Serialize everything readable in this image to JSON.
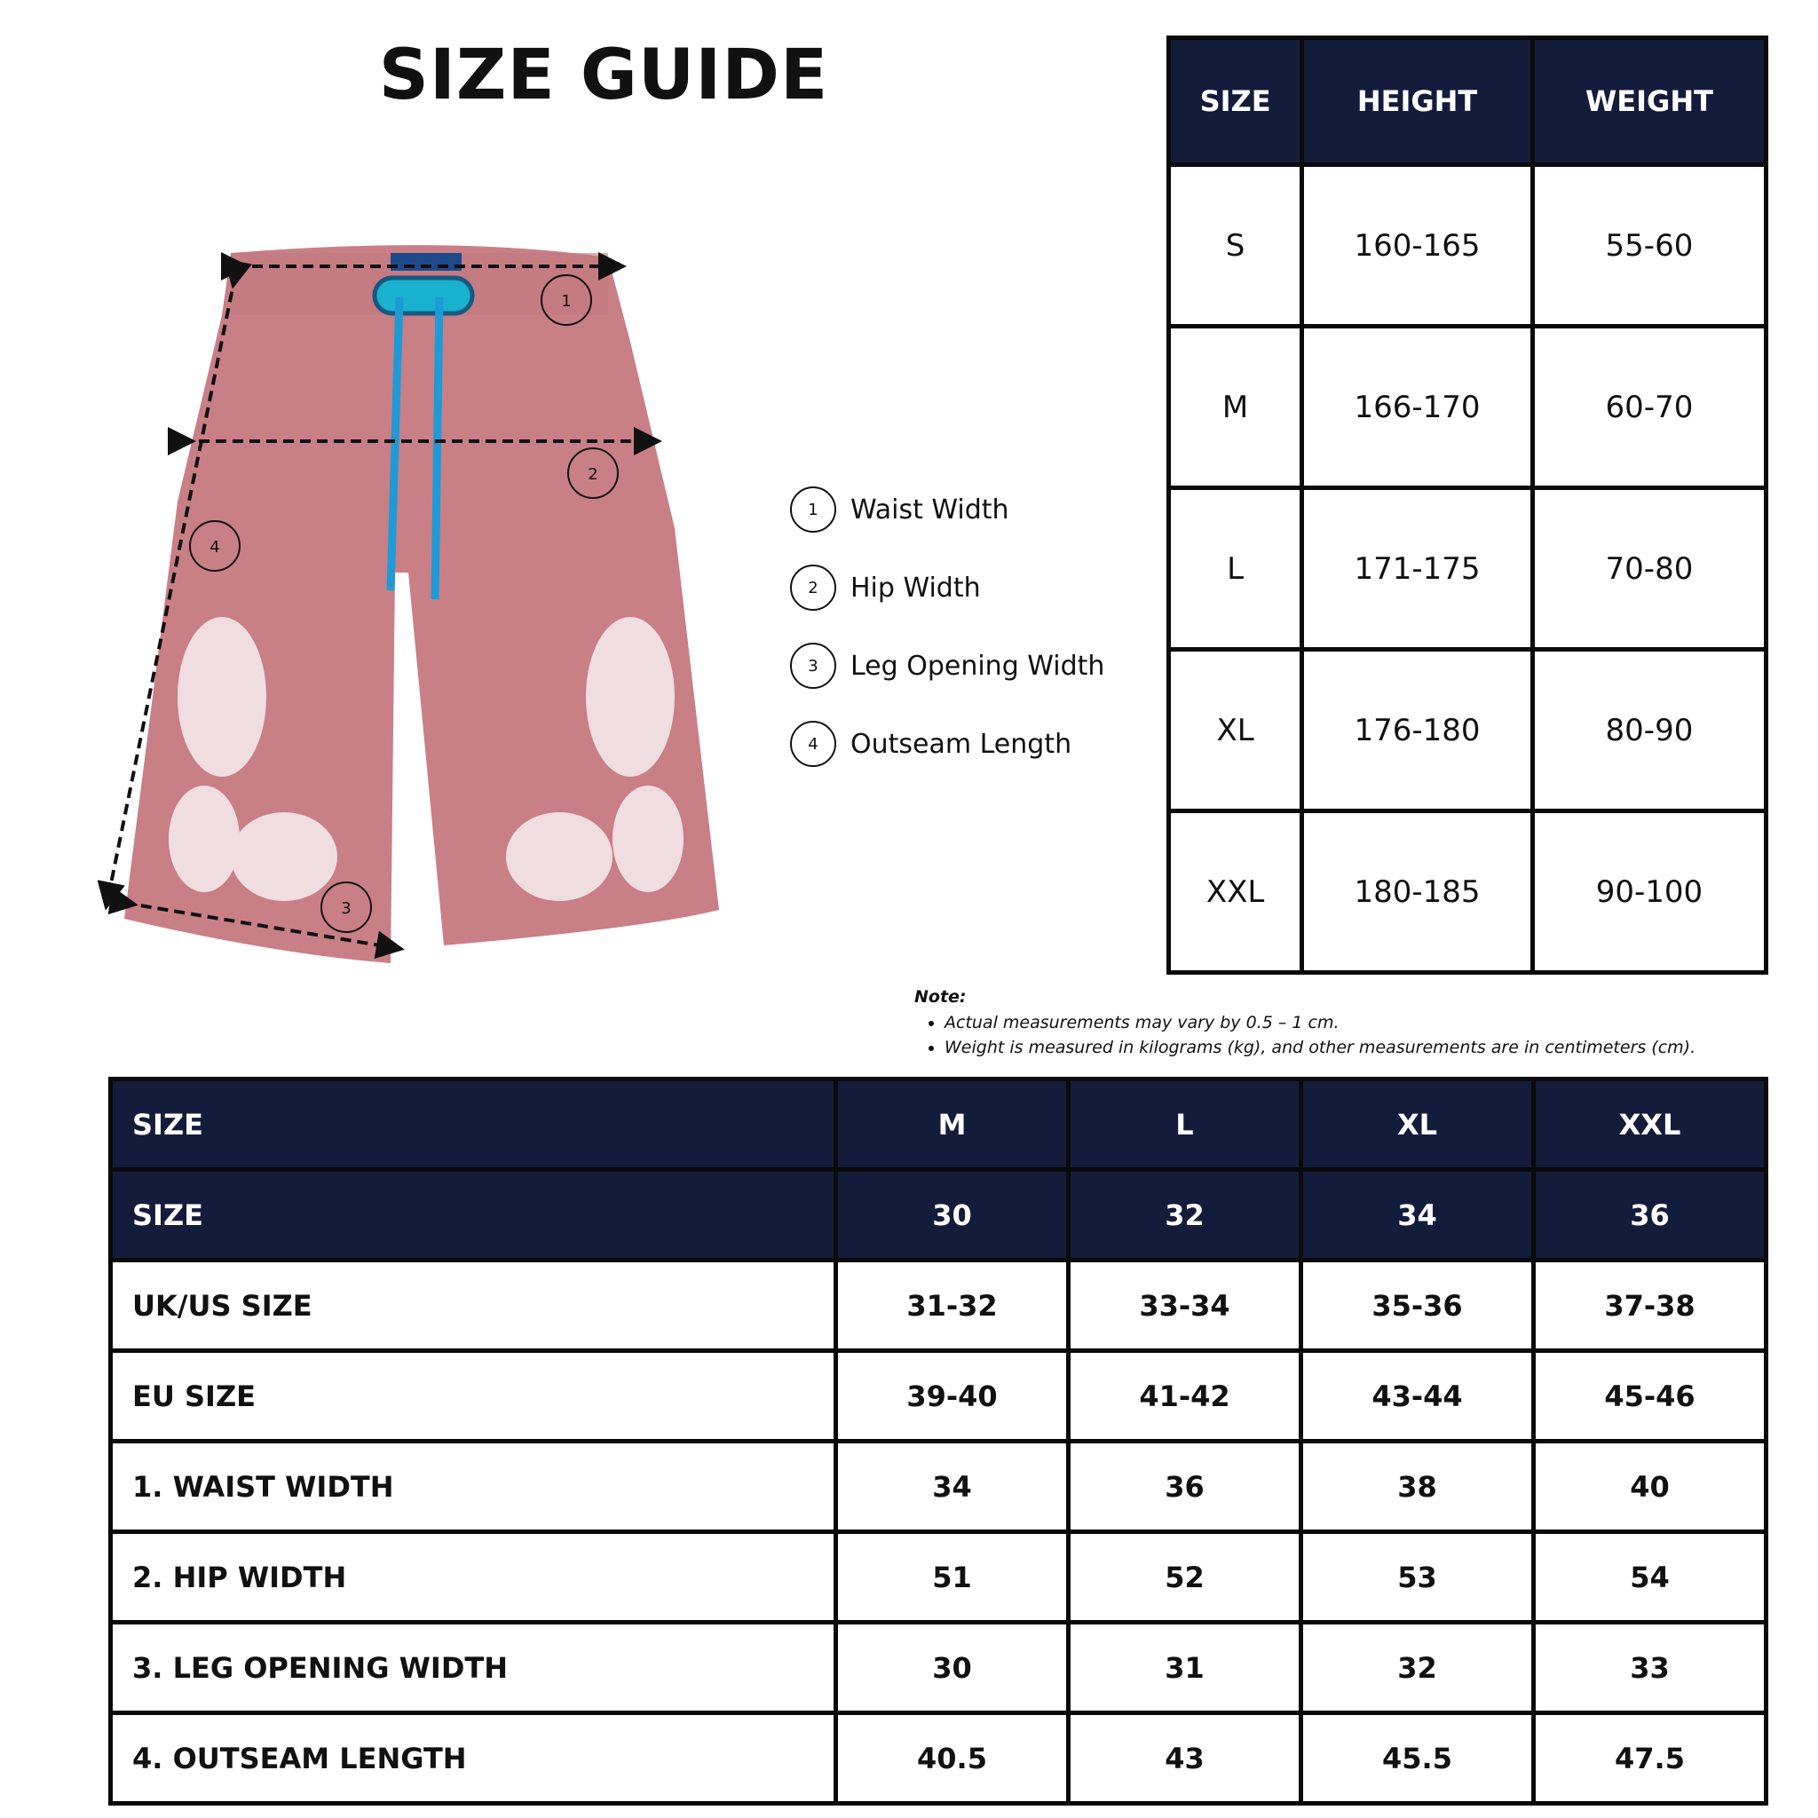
{
  "title": "SIZE GUIDE",
  "colors": {
    "header_navy": "#141c3b",
    "shorts_pink": "#c97f86",
    "drawstring_blue": "#1e9ad6"
  },
  "diagram": {
    "markers": [
      "1",
      "2",
      "3",
      "4"
    ]
  },
  "legend": [
    {
      "num": "1",
      "label": "Waist Width"
    },
    {
      "num": "2",
      "label": "Hip Width"
    },
    {
      "num": "3",
      "label": "Leg Opening Width"
    },
    {
      "num": "4",
      "label": "Outseam Length"
    }
  ],
  "height_weight_table": {
    "headers": [
      "SIZE",
      "HEIGHT",
      "WEIGHT"
    ],
    "rows": [
      [
        "S",
        "160-165",
        "55-60"
      ],
      [
        "M",
        "166-170",
        "60-70"
      ],
      [
        "L",
        "171-175",
        "70-80"
      ],
      [
        "XL",
        "176-180",
        "80-90"
      ],
      [
        "XXL",
        "180-185",
        "90-100"
      ]
    ]
  },
  "note": {
    "title": "Note:",
    "items": [
      "Actual measurements may vary by 0.5 – 1 cm.",
      "Weight is measured in kilograms (kg), and other measurements are in centimeters (cm)."
    ]
  },
  "measurement_table": {
    "header_rows": [
      [
        "SIZE",
        "M",
        "L",
        "XL",
        "XXL"
      ],
      [
        "SIZE",
        "30",
        "32",
        "34",
        "36"
      ]
    ],
    "rows": [
      [
        "UK/US SIZE",
        "31-32",
        "33-34",
        "35-36",
        "37-38"
      ],
      [
        "EU SIZE",
        "39-40",
        "41-42",
        "43-44",
        "45-46"
      ],
      [
        "1. WAIST WIDTH",
        "34",
        "36",
        "38",
        "40"
      ],
      [
        "2. HIP WIDTH",
        "51",
        "52",
        "53",
        "54"
      ],
      [
        "3. LEG OPENING WIDTH",
        "30",
        "31",
        "32",
        "33"
      ],
      [
        "4. OUTSEAM LENGTH",
        "40.5",
        "43",
        "45.5",
        "47.5"
      ]
    ]
  }
}
